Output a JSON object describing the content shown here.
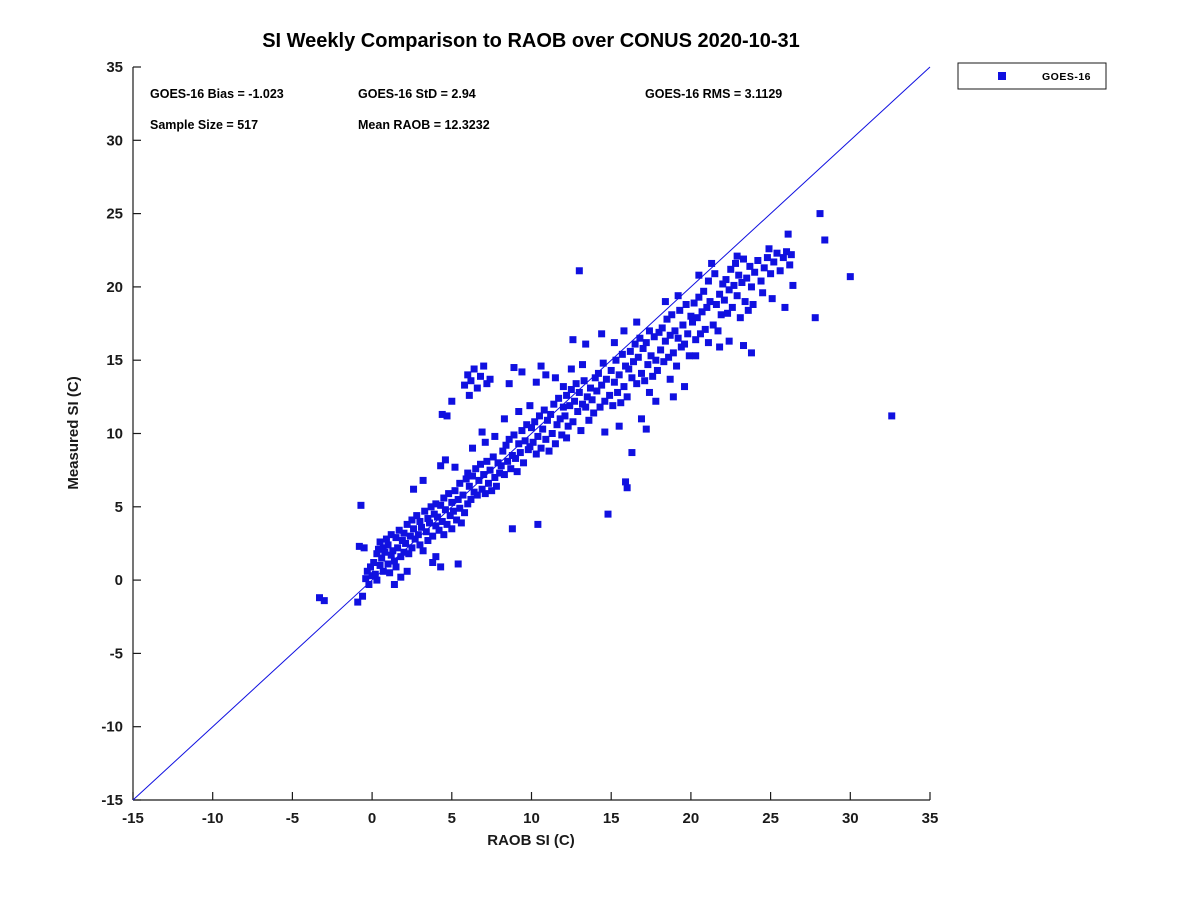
{
  "chart_data": {
    "type": "scatter",
    "title": "SI Weekly Comparison to RAOB over CONUS 2020-10-31",
    "xlabel": "RAOB SI (C)",
    "ylabel": "Measured SI (C)",
    "xlim": [
      -15,
      35
    ],
    "ylim": [
      -15,
      35
    ],
    "x_ticks": [
      -15,
      -10,
      -5,
      0,
      5,
      10,
      15,
      20,
      25,
      30,
      35
    ],
    "y_ticks": [
      -15,
      -10,
      -5,
      0,
      5,
      10,
      15,
      20,
      25,
      30,
      35
    ],
    "grid": false,
    "legend_position": "outside-top-right",
    "series": [
      {
        "name": "GOES-16",
        "marker": "square",
        "color": "#1010E0"
      }
    ],
    "reference_line": {
      "type": "identity",
      "from": [
        -15,
        -15
      ],
      "to": [
        35,
        35
      ],
      "color": "#1010E0"
    },
    "stats": {
      "bias": -1.023,
      "std": 2.94,
      "rms": 3.1129,
      "sample_size": 517,
      "mean_raob": 12.3232
    },
    "stats_labels": [
      "GOES-16 Bias = -1.023",
      "GOES-16 StD = 2.94",
      "GOES-16 RMS = 3.1129",
      "Sample Size = 517",
      "Mean RAOB = 12.3232"
    ],
    "points_note": "representative estimate of the 517 plotted points",
    "points": [
      [
        -3.3,
        -1.2
      ],
      [
        -3.0,
        -1.4
      ],
      [
        -0.9,
        -1.5
      ],
      [
        -0.6,
        -1.1
      ],
      [
        -0.8,
        2.3
      ],
      [
        -0.5,
        2.2
      ],
      [
        -0.7,
        5.1
      ],
      [
        -0.4,
        0.1
      ],
      [
        -0.3,
        0.6
      ],
      [
        -0.2,
        -0.3
      ],
      [
        -0.1,
        0.9
      ],
      [
        0.0,
        0.3
      ],
      [
        0.1,
        1.2
      ],
      [
        0.2,
        0.4
      ],
      [
        0.3,
        1.8
      ],
      [
        0.3,
        0.0
      ],
      [
        0.4,
        2.1
      ],
      [
        0.5,
        1.0
      ],
      [
        0.5,
        2.6
      ],
      [
        0.6,
        1.5
      ],
      [
        0.7,
        0.6
      ],
      [
        0.7,
        2.2
      ],
      [
        0.8,
        1.9
      ],
      [
        0.9,
        2.8
      ],
      [
        1.0,
        1.1
      ],
      [
        1.0,
        2.4
      ],
      [
        1.1,
        0.5
      ],
      [
        1.2,
        1.7
      ],
      [
        1.2,
        3.1
      ],
      [
        1.3,
        2.0
      ],
      [
        1.4,
        1.3
      ],
      [
        1.5,
        2.9
      ],
      [
        1.5,
        0.9
      ],
      [
        1.6,
        2.2
      ],
      [
        1.7,
        3.4
      ],
      [
        1.8,
        1.6
      ],
      [
        1.9,
        2.7
      ],
      [
        2.0,
        1.9
      ],
      [
        2.0,
        3.2
      ],
      [
        1.4,
        -0.3
      ],
      [
        1.8,
        0.2
      ],
      [
        2.2,
        0.6
      ],
      [
        2.1,
        2.5
      ],
      [
        2.2,
        3.8
      ],
      [
        2.3,
        1.8
      ],
      [
        2.4,
        3.0
      ],
      [
        2.5,
        2.2
      ],
      [
        2.5,
        4.1
      ],
      [
        2.6,
        3.5
      ],
      [
        2.7,
        2.8
      ],
      [
        2.8,
        4.4
      ],
      [
        2.9,
        3.1
      ],
      [
        3.0,
        2.4
      ],
      [
        3.0,
        4.0
      ],
      [
        3.1,
        3.6
      ],
      [
        3.2,
        2.0
      ],
      [
        3.3,
        4.7
      ],
      [
        3.4,
        3.3
      ],
      [
        3.5,
        2.7
      ],
      [
        3.5,
        4.2
      ],
      [
        3.6,
        3.9
      ],
      [
        3.7,
        5.0
      ],
      [
        3.8,
        3.0
      ],
      [
        3.9,
        4.5
      ],
      [
        4.0,
        3.7
      ],
      [
        4.0,
        5.2
      ],
      [
        3.2,
        6.8
      ],
      [
        2.6,
        6.2
      ],
      [
        3.8,
        1.2
      ],
      [
        4.0,
        1.6
      ],
      [
        4.1,
        4.3
      ],
      [
        4.2,
        3.4
      ],
      [
        4.3,
        5.1
      ],
      [
        4.4,
        4.0
      ],
      [
        4.5,
        5.6
      ],
      [
        4.5,
        3.1
      ],
      [
        4.6,
        4.8
      ],
      [
        4.7,
        3.8
      ],
      [
        4.8,
        5.9
      ],
      [
        4.9,
        4.4
      ],
      [
        5.0,
        3.5
      ],
      [
        5.0,
        5.3
      ],
      [
        5.1,
        4.7
      ],
      [
        5.2,
        6.1
      ],
      [
        5.3,
        4.1
      ],
      [
        5.4,
        5.5
      ],
      [
        5.5,
        4.9
      ],
      [
        5.5,
        6.6
      ],
      [
        5.6,
        3.9
      ],
      [
        5.7,
        5.8
      ],
      [
        5.8,
        4.6
      ],
      [
        5.9,
        6.9
      ],
      [
        6.0,
        5.2
      ],
      [
        6.0,
        7.3
      ],
      [
        4.3,
        7.8
      ],
      [
        4.6,
        8.2
      ],
      [
        5.2,
        7.7
      ],
      [
        4.4,
        11.3
      ],
      [
        4.7,
        11.2
      ],
      [
        5.0,
        12.2
      ],
      [
        4.3,
        0.9
      ],
      [
        5.4,
        1.1
      ],
      [
        5.8,
        13.3
      ],
      [
        6.0,
        14.0
      ],
      [
        6.2,
        13.6
      ],
      [
        6.4,
        14.4
      ],
      [
        6.6,
        13.1
      ],
      [
        6.8,
        13.9
      ],
      [
        7.0,
        14.6
      ],
      [
        7.2,
        13.4
      ],
      [
        6.1,
        12.6
      ],
      [
        7.4,
        13.7
      ],
      [
        6.1,
        6.4
      ],
      [
        6.2,
        5.5
      ],
      [
        6.3,
        7.1
      ],
      [
        6.4,
        6.0
      ],
      [
        6.5,
        7.6
      ],
      [
        6.6,
        5.8
      ],
      [
        6.7,
        6.8
      ],
      [
        6.8,
        7.9
      ],
      [
        6.9,
        6.2
      ],
      [
        7.0,
        7.2
      ],
      [
        7.1,
        5.9
      ],
      [
        7.2,
        8.1
      ],
      [
        7.3,
        6.6
      ],
      [
        7.4,
        7.5
      ],
      [
        7.5,
        6.1
      ],
      [
        7.6,
        8.4
      ],
      [
        7.7,
        7.0
      ],
      [
        7.8,
        6.4
      ],
      [
        7.9,
        8.0
      ],
      [
        8.0,
        7.3
      ],
      [
        6.3,
        9.0
      ],
      [
        7.1,
        9.4
      ],
      [
        7.7,
        9.8
      ],
      [
        6.9,
        10.1
      ],
      [
        8.1,
        7.8
      ],
      [
        8.2,
        8.8
      ],
      [
        8.3,
        7.2
      ],
      [
        8.4,
        9.2
      ],
      [
        8.5,
        8.1
      ],
      [
        8.6,
        9.6
      ],
      [
        8.7,
        7.6
      ],
      [
        8.8,
        8.5
      ],
      [
        8.9,
        9.9
      ],
      [
        9.0,
        8.3
      ],
      [
        9.1,
        7.4
      ],
      [
        9.2,
        9.3
      ],
      [
        9.3,
        8.7
      ],
      [
        9.4,
        10.2
      ],
      [
        9.5,
        8.0
      ],
      [
        9.6,
        9.5
      ],
      [
        9.7,
        10.6
      ],
      [
        9.8,
        8.9
      ],
      [
        9.9,
        9.1
      ],
      [
        10.0,
        10.4
      ],
      [
        8.8,
        3.5
      ],
      [
        10.4,
        3.8
      ],
      [
        8.3,
        11.0
      ],
      [
        9.2,
        11.5
      ],
      [
        9.9,
        11.9
      ],
      [
        8.6,
        13.4
      ],
      [
        8.9,
        14.5
      ],
      [
        9.4,
        14.2
      ],
      [
        10.1,
        9.4
      ],
      [
        10.2,
        10.8
      ],
      [
        10.3,
        8.6
      ],
      [
        10.4,
        9.8
      ],
      [
        10.5,
        11.2
      ],
      [
        10.6,
        9.0
      ],
      [
        10.7,
        10.3
      ],
      [
        10.8,
        11.6
      ],
      [
        10.9,
        9.6
      ],
      [
        11.0,
        10.9
      ],
      [
        11.1,
        8.8
      ],
      [
        11.2,
        11.3
      ],
      [
        11.3,
        10.0
      ],
      [
        11.4,
        12.0
      ],
      [
        11.5,
        9.3
      ],
      [
        11.6,
        10.6
      ],
      [
        11.7,
        12.4
      ],
      [
        11.8,
        11.0
      ],
      [
        11.9,
        9.9
      ],
      [
        12.0,
        11.8
      ],
      [
        10.3,
        13.5
      ],
      [
        10.9,
        14.0
      ],
      [
        11.5,
        13.8
      ],
      [
        10.6,
        14.6
      ],
      [
        12.0,
        13.2
      ],
      [
        12.1,
        11.2
      ],
      [
        12.2,
        12.6
      ],
      [
        12.3,
        10.5
      ],
      [
        12.4,
        11.9
      ],
      [
        12.5,
        13.0
      ],
      [
        12.6,
        10.8
      ],
      [
        12.7,
        12.2
      ],
      [
        12.8,
        13.4
      ],
      [
        12.9,
        11.5
      ],
      [
        13.0,
        12.8
      ],
      [
        13.1,
        10.2
      ],
      [
        13.2,
        12.0
      ],
      [
        13.3,
        13.6
      ],
      [
        13.4,
        11.8
      ],
      [
        13.5,
        12.5
      ],
      [
        13.6,
        10.9
      ],
      [
        13.7,
        13.1
      ],
      [
        13.8,
        12.3
      ],
      [
        13.9,
        11.4
      ],
      [
        14.0,
        13.8
      ],
      [
        12.5,
        14.4
      ],
      [
        13.2,
        14.7
      ],
      [
        13.0,
        21.1
      ],
      [
        12.6,
        16.4
      ],
      [
        13.4,
        16.1
      ],
      [
        12.2,
        9.7
      ],
      [
        14.1,
        12.9
      ],
      [
        14.2,
        14.1
      ],
      [
        14.3,
        11.8
      ],
      [
        14.4,
        13.3
      ],
      [
        14.5,
        14.8
      ],
      [
        14.6,
        12.2
      ],
      [
        14.7,
        13.7
      ],
      [
        14.8,
        4.5
      ],
      [
        14.9,
        12.6
      ],
      [
        15.0,
        14.3
      ],
      [
        15.1,
        11.9
      ],
      [
        15.2,
        13.5
      ],
      [
        15.3,
        15.0
      ],
      [
        15.4,
        12.8
      ],
      [
        15.5,
        14.0
      ],
      [
        15.6,
        12.1
      ],
      [
        15.7,
        15.4
      ],
      [
        15.8,
        13.2
      ],
      [
        15.9,
        14.6
      ],
      [
        16.0,
        12.5
      ],
      [
        14.4,
        16.8
      ],
      [
        15.2,
        16.2
      ],
      [
        15.8,
        17.0
      ],
      [
        14.6,
        10.1
      ],
      [
        15.5,
        10.5
      ],
      [
        16.0,
        6.3
      ],
      [
        15.9,
        6.7
      ],
      [
        16.3,
        8.7
      ],
      [
        16.1,
        14.4
      ],
      [
        16.2,
        15.6
      ],
      [
        16.3,
        13.8
      ],
      [
        16.4,
        14.9
      ],
      [
        16.5,
        16.1
      ],
      [
        16.6,
        13.4
      ],
      [
        16.7,
        15.2
      ],
      [
        16.8,
        16.5
      ],
      [
        16.9,
        14.1
      ],
      [
        17.0,
        15.8
      ],
      [
        17.1,
        13.6
      ],
      [
        17.2,
        16.2
      ],
      [
        17.3,
        14.7
      ],
      [
        17.4,
        17.0
      ],
      [
        17.5,
        15.3
      ],
      [
        17.6,
        13.9
      ],
      [
        17.7,
        16.6
      ],
      [
        17.8,
        15.0
      ],
      [
        17.9,
        14.3
      ],
      [
        18.0,
        16.9
      ],
      [
        16.6,
        17.6
      ],
      [
        17.4,
        12.8
      ],
      [
        17.8,
        12.2
      ],
      [
        16.9,
        11.0
      ],
      [
        17.2,
        10.3
      ],
      [
        18.1,
        15.7
      ],
      [
        18.2,
        17.2
      ],
      [
        18.3,
        14.9
      ],
      [
        18.4,
        16.3
      ],
      [
        18.5,
        17.8
      ],
      [
        18.6,
        15.2
      ],
      [
        18.7,
        16.7
      ],
      [
        18.8,
        18.1
      ],
      [
        18.9,
        15.5
      ],
      [
        19.0,
        17.0
      ],
      [
        19.1,
        14.6
      ],
      [
        19.2,
        16.5
      ],
      [
        19.3,
        18.4
      ],
      [
        19.4,
        15.9
      ],
      [
        19.5,
        17.4
      ],
      [
        19.6,
        16.1
      ],
      [
        19.7,
        18.8
      ],
      [
        19.8,
        16.8
      ],
      [
        19.9,
        15.3
      ],
      [
        20.0,
        18.0
      ],
      [
        18.4,
        19.0
      ],
      [
        19.2,
        19.4
      ],
      [
        18.7,
        13.7
      ],
      [
        19.6,
        13.2
      ],
      [
        18.9,
        12.5
      ],
      [
        20.1,
        17.6
      ],
      [
        20.2,
        18.9
      ],
      [
        20.3,
        16.4
      ],
      [
        20.4,
        17.9
      ],
      [
        20.5,
        19.3
      ],
      [
        20.6,
        16.8
      ],
      [
        20.7,
        18.3
      ],
      [
        20.8,
        19.7
      ],
      [
        20.9,
        17.1
      ],
      [
        21.0,
        18.6
      ],
      [
        21.1,
        16.2
      ],
      [
        21.2,
        19.0
      ],
      [
        21.3,
        21.6
      ],
      [
        21.4,
        17.4
      ],
      [
        21.5,
        20.9
      ],
      [
        21.6,
        18.8
      ],
      [
        21.7,
        17.0
      ],
      [
        21.8,
        19.5
      ],
      [
        21.9,
        18.1
      ],
      [
        22.0,
        20.2
      ],
      [
        20.5,
        20.8
      ],
      [
        21.1,
        20.4
      ],
      [
        21.8,
        15.9
      ],
      [
        20.3,
        15.3
      ],
      [
        22.1,
        19.1
      ],
      [
        22.2,
        20.5
      ],
      [
        22.3,
        18.2
      ],
      [
        22.4,
        19.8
      ],
      [
        22.5,
        21.2
      ],
      [
        22.6,
        18.6
      ],
      [
        22.7,
        20.1
      ],
      [
        22.8,
        21.6
      ],
      [
        22.9,
        19.4
      ],
      [
        23.0,
        20.8
      ],
      [
        23.1,
        17.9
      ],
      [
        23.2,
        20.3
      ],
      [
        23.3,
        21.9
      ],
      [
        23.4,
        19.0
      ],
      [
        23.5,
        20.6
      ],
      [
        23.6,
        18.4
      ],
      [
        23.7,
        21.4
      ],
      [
        23.8,
        20.0
      ],
      [
        23.9,
        18.8
      ],
      [
        24.0,
        21.0
      ],
      [
        22.4,
        16.3
      ],
      [
        23.3,
        16.0
      ],
      [
        23.8,
        15.5
      ],
      [
        22.9,
        22.1
      ],
      [
        24.2,
        21.8
      ],
      [
        24.4,
        20.4
      ],
      [
        24.6,
        21.3
      ],
      [
        24.8,
        22.0
      ],
      [
        25.0,
        20.9
      ],
      [
        25.2,
        21.7
      ],
      [
        25.4,
        22.3
      ],
      [
        25.6,
        21.1
      ],
      [
        25.8,
        22.0
      ],
      [
        26.0,
        22.4
      ],
      [
        26.1,
        23.6
      ],
      [
        26.2,
        21.5
      ],
      [
        26.3,
        22.2
      ],
      [
        24.5,
        19.6
      ],
      [
        25.1,
        19.2
      ],
      [
        26.4,
        20.1
      ],
      [
        25.9,
        18.6
      ],
      [
        24.9,
        22.6
      ],
      [
        27.8,
        17.9
      ],
      [
        28.1,
        25.0
      ],
      [
        28.4,
        23.2
      ],
      [
        30.0,
        20.7
      ],
      [
        32.6,
        11.2
      ]
    ]
  }
}
